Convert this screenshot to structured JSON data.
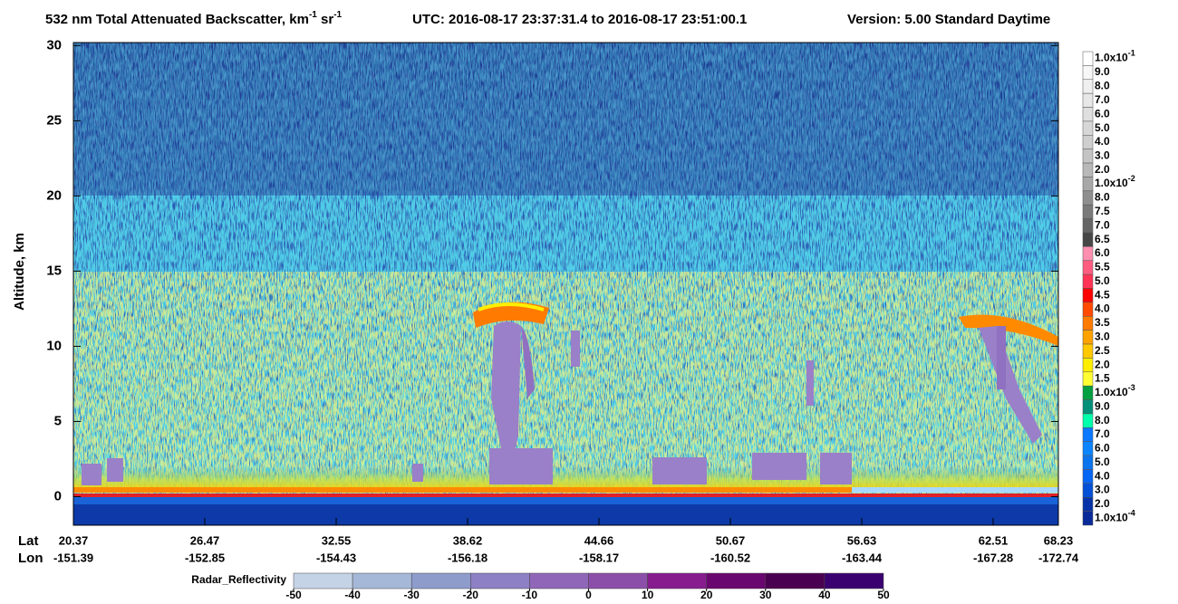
{
  "chart_data": {
    "type": "curtain",
    "title_parts": [
      "532 nm Total Attenuated Backscatter, km",
      "-1",
      " sr",
      "-1"
    ],
    "utc": "UTC:  2016-08-17 23:37:31.4  to  2016-08-17 23:51:00.1",
    "version": "Version: 5.00  Standard  Daytime",
    "ylabel": "Altitude, km",
    "ylim": [
      -1.9,
      30.2
    ],
    "yticks": [
      0,
      5,
      10,
      15,
      20,
      25,
      30
    ],
    "lat_label": "Lat",
    "lon_label": "Lon",
    "lat": [
      "20.37",
      "26.47",
      "32.55",
      "38.62",
      "44.66",
      "50.67",
      "56.63",
      "62.51",
      "68.23"
    ],
    "lon": [
      "-151.39",
      "-152.85",
      "-154.43",
      "-156.18",
      "-158.17",
      "-160.52",
      "-163.44",
      "-167.28",
      "-172.74"
    ],
    "colorbar": {
      "labels": [
        {
          "text": "1.0x10",
          "sup": "-1"
        },
        "9.0",
        "8.0",
        "7.0",
        "6.0",
        "5.0",
        "4.0",
        "3.0",
        "2.0",
        {
          "text": "1.0x10",
          "sup": "-2"
        },
        "8.0",
        "7.5",
        "7.0",
        "6.5",
        "6.0",
        "5.5",
        "5.0",
        "4.5",
        "4.0",
        "3.5",
        "3.0",
        "2.5",
        "2.0",
        "1.5",
        {
          "text": "1.0x10",
          "sup": "-3"
        },
        "9.0",
        "8.0",
        "7.0",
        "6.0",
        "5.0",
        "4.0",
        "3.0",
        "2.0",
        {
          "text": "1.0x10",
          "sup": "-4"
        }
      ],
      "colors": [
        "#ffffff",
        "#f7f7f7",
        "#efefef",
        "#e7e7e7",
        "#dfdfdf",
        "#d7d7d7",
        "#cfcfcf",
        "#c4c4c4",
        "#b8b8b8",
        "#a8a8a8",
        "#8e8e8e",
        "#7a7a7a",
        "#666666",
        "#474747",
        "#ff8fb0",
        "#ff5c80",
        "#ff3355",
        "#ff0000",
        "#ff4a00",
        "#ff7a00",
        "#ffa200",
        "#ffc800",
        "#ffee00",
        "#ffff33",
        "#00a040",
        "#00907a",
        "#00ffaa",
        "#0a78ff",
        "#0a84ff",
        "#0a74ee",
        "#0566f5",
        "#0350d8",
        "#0633a8",
        "#0a2a9a"
      ]
    },
    "radar": {
      "label": "Radar_Reflectivity",
      "lim": [
        -50,
        50
      ],
      "ticks": [
        -50,
        -40,
        -30,
        -20,
        -10,
        0,
        10,
        20,
        30,
        40,
        50
      ],
      "colors": [
        "#c5d3e6",
        "#a6b8d8",
        "#8e9ccc",
        "#8d80c4",
        "#9067b8",
        "#8c4fa9",
        "#861c8e",
        "#6a0670",
        "#4a0050",
        "#3a0070"
      ]
    }
  }
}
